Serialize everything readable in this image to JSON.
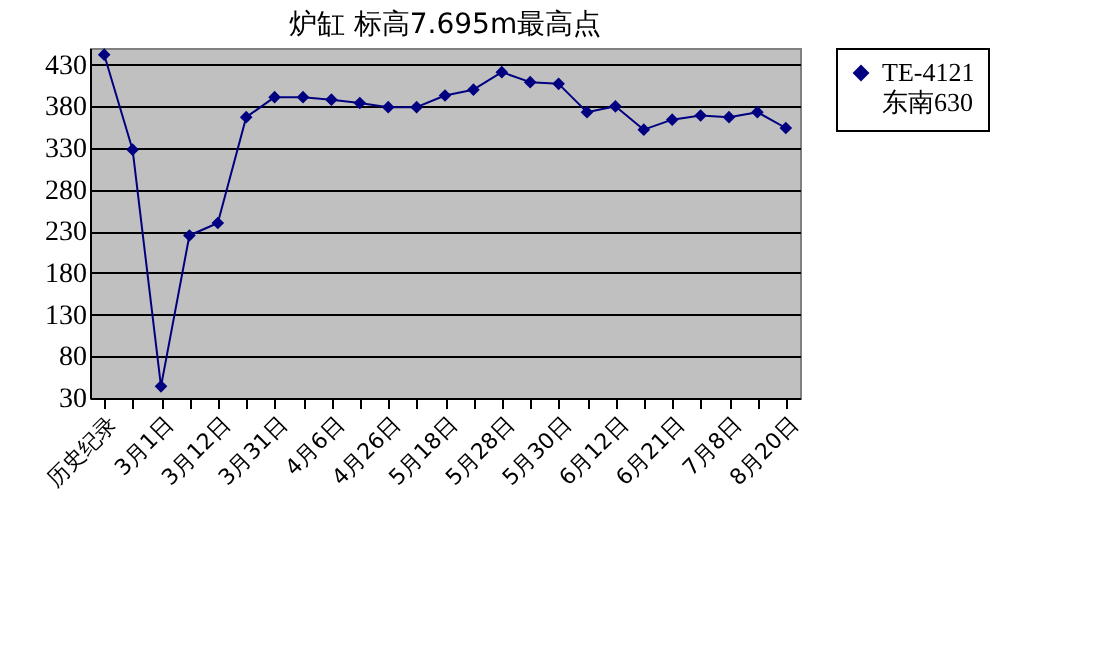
{
  "chart_data": {
    "type": "line",
    "title": "炉缸 标高7.695m最高点",
    "categories": [
      "历史纪录",
      null,
      "3月1日",
      null,
      "3月12日",
      null,
      "3月31日",
      null,
      "4月6日",
      null,
      "4月26日",
      null,
      "5月18日",
      null,
      "5月28日",
      null,
      "5月30日",
      null,
      "6月12日",
      null,
      "6月21日",
      null,
      "7月8日",
      null,
      "8月20日"
    ],
    "series": [
      {
        "name": "TE-4121 东南630",
        "color": "#000080",
        "values": [
          442,
          328,
          44,
          225,
          240,
          367,
          391,
          391,
          388,
          384,
          379,
          379,
          393,
          400,
          421,
          409,
          407,
          373,
          380,
          352,
          364,
          369,
          367,
          373,
          354
        ]
      }
    ],
    "ylim": [
      30,
      450
    ],
    "yticks": [
      30,
      80,
      130,
      180,
      230,
      280,
      330,
      380,
      430
    ],
    "grid": "y",
    "legend": "right",
    "marker": "diamond",
    "line_style": "solid"
  }
}
